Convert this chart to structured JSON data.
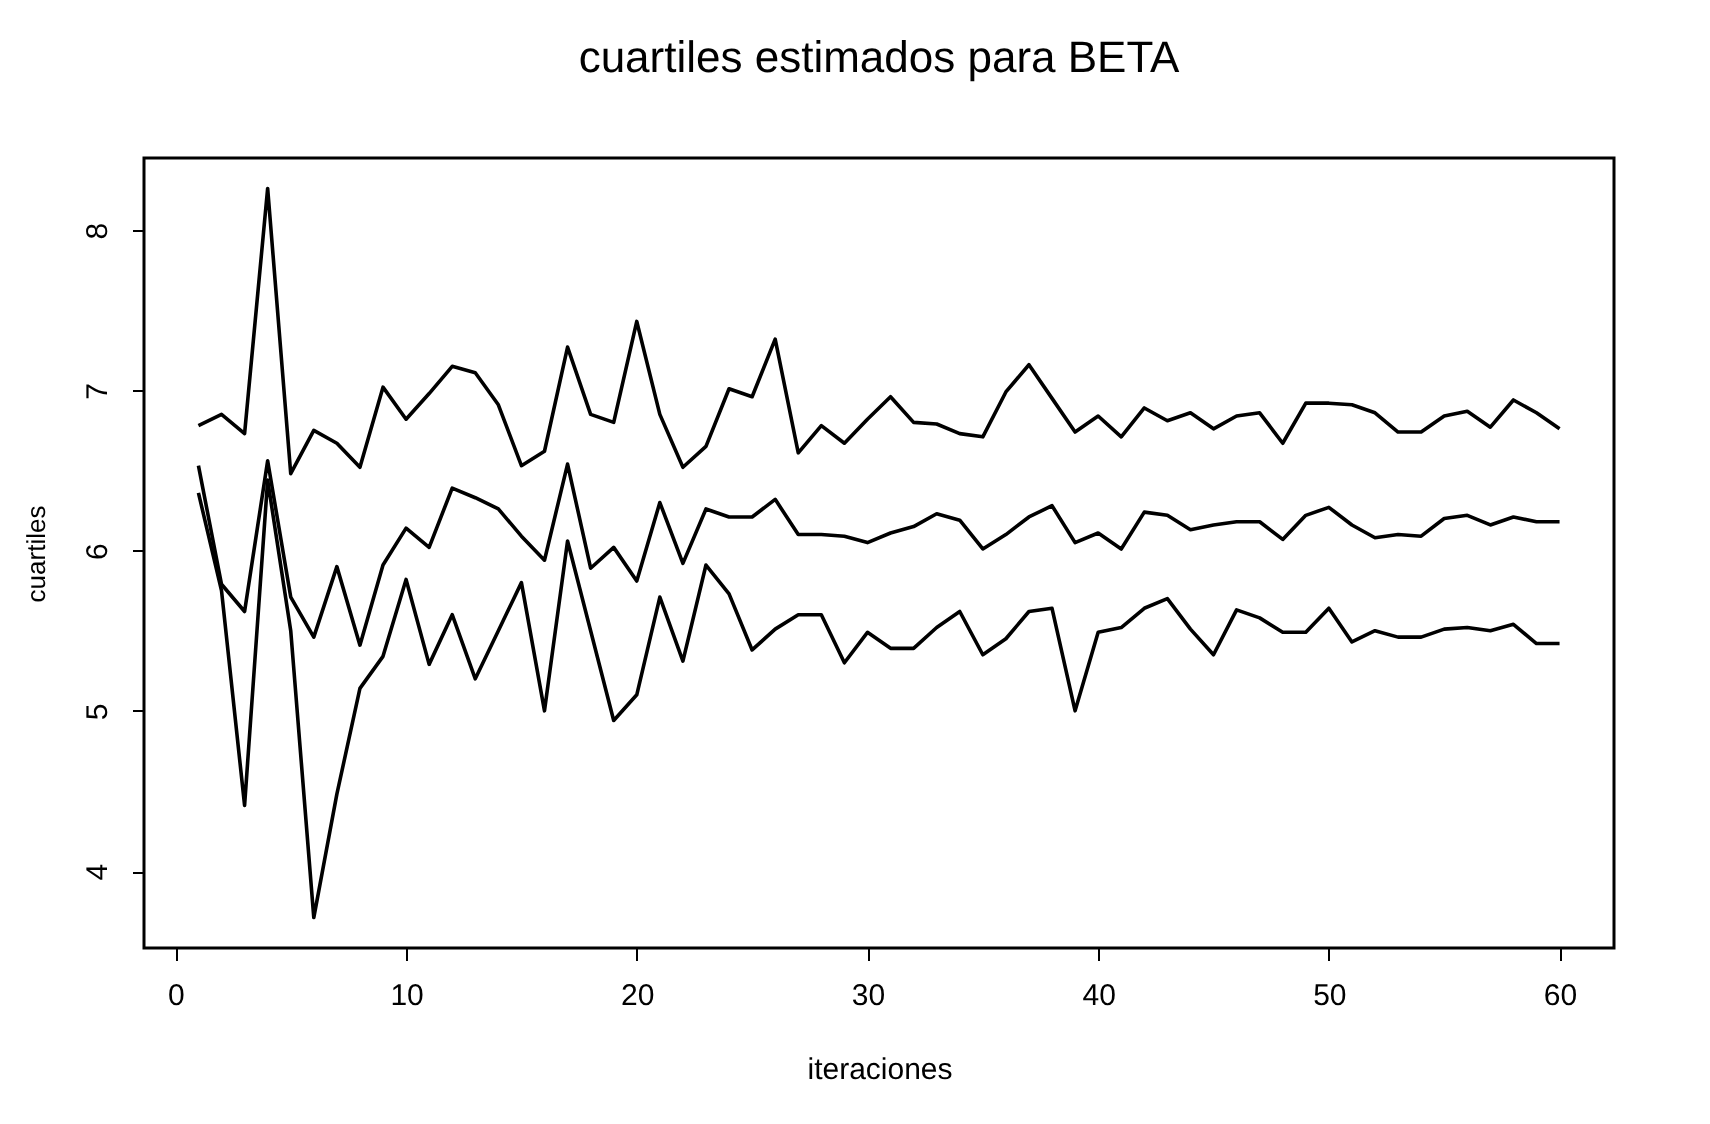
{
  "chart_data": {
    "type": "line",
    "title": "cuartiles estimados para BETA",
    "xlabel": "iteraciones",
    "ylabel": "cuartiles",
    "x": [
      1,
      2,
      3,
      4,
      5,
      6,
      7,
      8,
      9,
      10,
      11,
      12,
      13,
      14,
      15,
      16,
      17,
      18,
      19,
      20,
      21,
      22,
      23,
      24,
      25,
      26,
      27,
      28,
      29,
      30,
      31,
      32,
      33,
      34,
      35,
      36,
      37,
      38,
      39,
      40,
      41,
      42,
      43,
      44,
      45,
      46,
      47,
      48,
      49,
      50,
      51,
      52,
      53,
      54,
      55,
      56,
      57,
      58,
      59,
      60
    ],
    "series": [
      {
        "color": "#000000",
        "values": [
          6.78,
          6.85,
          6.73,
          8.26,
          6.48,
          6.75,
          6.67,
          6.52,
          7.02,
          6.82,
          6.98,
          7.15,
          7.11,
          6.91,
          6.53,
          6.62,
          7.27,
          6.85,
          6.8,
          7.43,
          6.85,
          6.52,
          6.65,
          7.01,
          6.96,
          7.32,
          6.61,
          6.78,
          6.67,
          6.82,
          6.96,
          6.8,
          6.79,
          6.73,
          6.71,
          6.99,
          7.16,
          6.95,
          6.74,
          6.84,
          6.71,
          6.89,
          6.81,
          6.86,
          6.76,
          6.84,
          6.86,
          6.67,
          6.92,
          6.92,
          6.91,
          6.86,
          6.74,
          6.74,
          6.84,
          6.87,
          6.77,
          6.94,
          6.86,
          6.76
        ]
      },
      {
        "color": "#000000",
        "values": [
          6.53,
          5.79,
          5.62,
          6.56,
          5.71,
          5.46,
          5.9,
          5.41,
          5.91,
          6.14,
          6.02,
          6.39,
          6.33,
          6.26,
          6.09,
          5.94,
          6.54,
          5.89,
          6.02,
          5.81,
          6.3,
          5.92,
          6.26,
          6.21,
          6.21,
          6.32,
          6.1,
          6.1,
          6.09,
          6.05,
          6.11,
          6.15,
          6.23,
          6.19,
          6.01,
          6.1,
          6.21,
          6.28,
          6.05,
          6.11,
          6.01,
          6.24,
          6.22,
          6.13,
          6.16,
          6.18,
          6.18,
          6.07,
          6.22,
          6.27,
          6.16,
          6.08,
          6.1,
          6.09,
          6.2,
          6.22,
          6.16,
          6.21,
          6.18,
          6.18
        ]
      },
      {
        "color": "#000000",
        "values": [
          6.36,
          5.75,
          4.41,
          6.44,
          5.5,
          3.71,
          4.48,
          5.14,
          5.34,
          5.82,
          5.29,
          5.6,
          5.2,
          5.5,
          5.8,
          5.0,
          6.06,
          5.5,
          4.94,
          5.1,
          5.71,
          5.31,
          5.91,
          5.73,
          5.38,
          5.51,
          5.6,
          5.6,
          5.3,
          5.49,
          5.39,
          5.39,
          5.52,
          5.62,
          5.35,
          5.45,
          5.62,
          5.64,
          5.0,
          5.49,
          5.52,
          5.64,
          5.7,
          5.51,
          5.35,
          5.63,
          5.58,
          5.49,
          5.49,
          5.64,
          5.43,
          5.5,
          5.46,
          5.46,
          5.51,
          5.52,
          5.5,
          5.54,
          5.42,
          5.42
        ]
      }
    ],
    "xlim": [
      -1.36,
      62.36
    ],
    "ylim": [
      3.52,
      8.45
    ],
    "xticks": [
      0,
      10,
      20,
      30,
      40,
      50,
      60
    ],
    "yticks": [
      4,
      5,
      6,
      7,
      8
    ],
    "grid": false,
    "line_style": "solid",
    "marker": "none"
  }
}
